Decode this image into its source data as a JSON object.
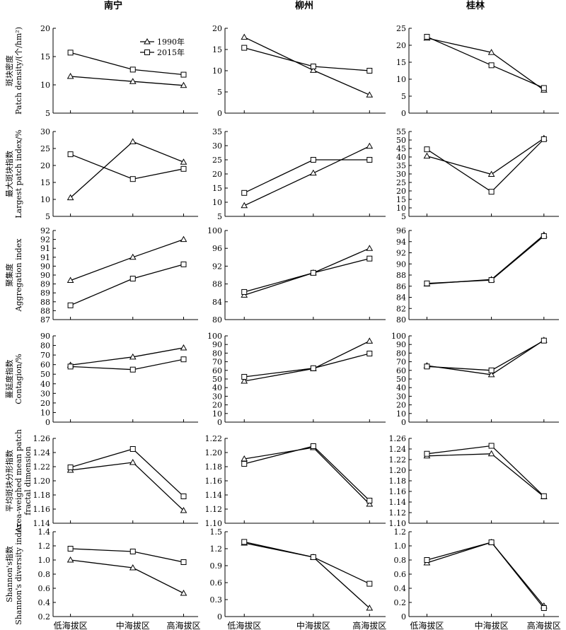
{
  "columns": [
    "南宁",
    "柳州",
    "桂林"
  ],
  "categories": [
    "低海拔区",
    "中海拔区",
    "高海拔区"
  ],
  "legend": [
    {
      "name": "1990年",
      "marker": "triangle"
    },
    {
      "name": "2015年",
      "marker": "square"
    }
  ],
  "row_labels": [
    {
      "zh": "斑块密度",
      "en": "Patch  density/(个/hm²)"
    },
    {
      "zh": "最大斑块指数",
      "en": "Largest patch index/%"
    },
    {
      "zh": "聚集度",
      "en": "Aggregation index"
    },
    {
      "zh": "蔓延度指数",
      "en": "Contagion/%"
    },
    {
      "zh": "平均斑块分形指数",
      "en": "Area-weighed mean patch",
      "en2": "fractal dimension"
    },
    {
      "zh": "Shannon's指数",
      "en": "Shannon's diversity index"
    }
  ],
  "chart_data": [
    {
      "type": "line",
      "row": 0,
      "col": 0,
      "ylim": [
        5,
        20
      ],
      "ticks": [
        5,
        10,
        15,
        20
      ],
      "tick_labels": [
        "5",
        "10",
        "15",
        "20"
      ],
      "categories": [
        "低海拔区",
        "中海拔区",
        "高海拔区"
      ],
      "series": [
        {
          "name": "1990年",
          "marker": "triangle",
          "values": [
            11.5,
            10.6,
            9.9
          ]
        },
        {
          "name": "2015年",
          "marker": "square",
          "values": [
            15.7,
            12.7,
            11.8
          ]
        }
      ]
    },
    {
      "type": "line",
      "row": 0,
      "col": 1,
      "ylim": [
        0,
        20
      ],
      "ticks": [
        0,
        5,
        10,
        15,
        20
      ],
      "tick_labels": [
        "0",
        "5",
        "10",
        "15",
        "20"
      ],
      "categories": [
        "低海拔区",
        "中海拔区",
        "高海拔区"
      ],
      "series": [
        {
          "name": "1990年",
          "marker": "triangle",
          "values": [
            17.9,
            10.1,
            4.3
          ]
        },
        {
          "name": "2015年",
          "marker": "square",
          "values": [
            15.4,
            11.0,
            10.0
          ]
        }
      ]
    },
    {
      "type": "line",
      "row": 0,
      "col": 2,
      "ylim": [
        0,
        25
      ],
      "ticks": [
        0,
        5,
        10,
        15,
        20,
        25
      ],
      "tick_labels": [
        "0",
        "5",
        "10",
        "15",
        "20",
        "25"
      ],
      "categories": [
        "低海拔区",
        "中海拔区",
        "高海拔区"
      ],
      "series": [
        {
          "name": "1990年",
          "marker": "triangle",
          "values": [
            22.1,
            17.9,
            6.8
          ]
        },
        {
          "name": "2015年",
          "marker": "square",
          "values": [
            22.5,
            14.1,
            7.4
          ]
        }
      ]
    },
    {
      "type": "line",
      "row": 1,
      "col": 0,
      "ylim": [
        5,
        30
      ],
      "ticks": [
        5,
        10,
        15,
        20,
        25,
        30
      ],
      "tick_labels": [
        "5",
        "10",
        "15",
        "20",
        "25",
        "30"
      ],
      "categories": [
        "低海拔区",
        "中海拔区",
        "高海拔区"
      ],
      "series": [
        {
          "name": "1990年",
          "marker": "triangle",
          "values": [
            10.5,
            27.0,
            21.0
          ]
        },
        {
          "name": "2015年",
          "marker": "square",
          "values": [
            23.3,
            16.0,
            19.0
          ]
        }
      ]
    },
    {
      "type": "line",
      "row": 1,
      "col": 1,
      "ylim": [
        5,
        35
      ],
      "ticks": [
        5,
        10,
        15,
        20,
        25,
        30,
        35
      ],
      "tick_labels": [
        "5",
        "10",
        "15",
        "20",
        "25",
        "30",
        "35"
      ],
      "categories": [
        "低海拔区",
        "中海拔区",
        "高海拔区"
      ],
      "series": [
        {
          "name": "1990年",
          "marker": "triangle",
          "values": [
            8.8,
            20.3,
            29.8
          ]
        },
        {
          "name": "2015年",
          "marker": "square",
          "values": [
            13.3,
            25.0,
            25.0
          ]
        }
      ]
    },
    {
      "type": "line",
      "row": 1,
      "col": 2,
      "ylim": [
        5,
        55
      ],
      "ticks": [
        5,
        10,
        15,
        20,
        25,
        30,
        35,
        40,
        45,
        50,
        55
      ],
      "tick_labels": [
        "5",
        "10",
        "15",
        "20",
        "25",
        "30",
        "35",
        "40",
        "45",
        "50",
        "55"
      ],
      "categories": [
        "低海拔区",
        "中海拔区",
        "高海拔区"
      ],
      "series": [
        {
          "name": "1990年",
          "marker": "triangle",
          "values": [
            40.5,
            29.8,
            51.0
          ]
        },
        {
          "name": "2015年",
          "marker": "square",
          "values": [
            44.5,
            19.5,
            50.5
          ]
        }
      ]
    },
    {
      "type": "line",
      "row": 2,
      "col": 0,
      "ylim": [
        87,
        92
      ],
      "ticks": [
        87,
        87.5,
        88,
        88.5,
        89,
        89.5,
        90,
        90.5,
        91,
        91.5,
        92
      ],
      "tick_labels": [
        "87",
        "88",
        "88",
        "89",
        "89",
        "90",
        "90",
        "91",
        "91",
        "92",
        "92"
      ],
      "categories": [
        "低海拔区",
        "中海拔区",
        "高海拔区"
      ],
      "series": [
        {
          "name": "1990年",
          "marker": "triangle",
          "values": [
            89.2,
            90.5,
            91.5
          ]
        },
        {
          "name": "2015年",
          "marker": "square",
          "values": [
            87.8,
            89.3,
            90.1
          ]
        }
      ]
    },
    {
      "type": "line",
      "row": 2,
      "col": 1,
      "ylim": [
        80,
        100
      ],
      "ticks": [
        80,
        84,
        88,
        92,
        96,
        100
      ],
      "tick_labels": [
        "80",
        "84",
        "88",
        "92",
        "96",
        "100"
      ],
      "categories": [
        "低海拔区",
        "中海拔区",
        "高海拔区"
      ],
      "series": [
        {
          "name": "1990年",
          "marker": "triangle",
          "values": [
            85.5,
            90.5,
            96.0
          ]
        },
        {
          "name": "2015年",
          "marker": "square",
          "values": [
            86.2,
            90.5,
            93.7
          ]
        }
      ]
    },
    {
      "type": "line",
      "row": 2,
      "col": 2,
      "ylim": [
        80,
        96
      ],
      "ticks": [
        80,
        82,
        84,
        86,
        88,
        90,
        92,
        94,
        96
      ],
      "tick_labels": [
        "80",
        "82",
        "84",
        "86",
        "88",
        "90",
        "92",
        "94",
        "96"
      ],
      "categories": [
        "低海拔区",
        "中海拔区",
        "高海拔区"
      ],
      "series": [
        {
          "name": "1990年",
          "marker": "triangle",
          "values": [
            86.4,
            87.2,
            95.2
          ]
        },
        {
          "name": "2015年",
          "marker": "square",
          "values": [
            86.5,
            87.1,
            95.0
          ]
        }
      ]
    },
    {
      "type": "line",
      "row": 3,
      "col": 0,
      "ylim": [
        0,
        90
      ],
      "ticks": [
        0,
        10,
        20,
        30,
        40,
        50,
        60,
        70,
        80,
        90
      ],
      "tick_labels": [
        "0",
        "10",
        "20",
        "30",
        "40",
        "50",
        "60",
        "70",
        "80",
        "90"
      ],
      "categories": [
        "低海拔区",
        "中海拔区",
        "高海拔区"
      ],
      "series": [
        {
          "name": "1990年",
          "marker": "triangle",
          "values": [
            59.5,
            68.0,
            77.5
          ]
        },
        {
          "name": "2015年",
          "marker": "square",
          "values": [
            58.0,
            54.8,
            65.5
          ]
        }
      ]
    },
    {
      "type": "line",
      "row": 3,
      "col": 1,
      "ylim": [
        0,
        100
      ],
      "ticks": [
        0,
        10,
        20,
        30,
        40,
        50,
        60,
        70,
        80,
        90,
        100
      ],
      "tick_labels": [
        "0",
        "10",
        "20",
        "30",
        "40",
        "50",
        "60",
        "70",
        "80",
        "90",
        "100"
      ],
      "categories": [
        "低海拔区",
        "中海拔区",
        "高海拔区"
      ],
      "series": [
        {
          "name": "1990年",
          "marker": "triangle",
          "values": [
            47.5,
            62.0,
            94.0
          ]
        },
        {
          "name": "2015年",
          "marker": "square",
          "values": [
            52.5,
            62.5,
            79.5
          ]
        }
      ]
    },
    {
      "type": "line",
      "row": 3,
      "col": 2,
      "ylim": [
        0,
        100
      ],
      "ticks": [
        0,
        10,
        20,
        30,
        40,
        50,
        60,
        70,
        80,
        90,
        100
      ],
      "tick_labels": [
        "0",
        "10",
        "20",
        "30",
        "40",
        "50",
        "60",
        "70",
        "80",
        "90",
        "100"
      ],
      "categories": [
        "低海拔区",
        "中海拔区",
        "高海拔区"
      ],
      "series": [
        {
          "name": "1990年",
          "marker": "triangle",
          "values": [
            65.5,
            55.0,
            95.0
          ]
        },
        {
          "name": "2015年",
          "marker": "square",
          "values": [
            64.5,
            60.0,
            94.5
          ]
        }
      ]
    },
    {
      "type": "line",
      "row": 4,
      "col": 0,
      "ylim": [
        1.14,
        1.26
      ],
      "ticks": [
        1.14,
        1.16,
        1.18,
        1.2,
        1.22,
        1.24,
        1.26
      ],
      "tick_labels": [
        "1.14",
        "1.16",
        "1.18",
        "1.20",
        "1.22",
        "1.24",
        "1.26"
      ],
      "categories": [
        "低海拔区",
        "中海拔区",
        "高海拔区"
      ],
      "series": [
        {
          "name": "1990年",
          "marker": "triangle",
          "values": [
            1.215,
            1.226,
            1.158
          ]
        },
        {
          "name": "2015年",
          "marker": "square",
          "values": [
            1.219,
            1.245,
            1.178
          ]
        }
      ]
    },
    {
      "type": "line",
      "row": 4,
      "col": 1,
      "ylim": [
        1.1,
        1.22
      ],
      "ticks": [
        1.1,
        1.12,
        1.14,
        1.16,
        1.18,
        1.2,
        1.22
      ],
      "tick_labels": [
        "1.10",
        "1.12",
        "1.14",
        "1.16",
        "1.18",
        "1.20",
        "1.22"
      ],
      "categories": [
        "低海拔区",
        "中海拔区",
        "高海拔区"
      ],
      "series": [
        {
          "name": "1990年",
          "marker": "triangle",
          "values": [
            1.191,
            1.207,
            1.127
          ]
        },
        {
          "name": "2015年",
          "marker": "square",
          "values": [
            1.184,
            1.209,
            1.132
          ]
        }
      ]
    },
    {
      "type": "line",
      "row": 4,
      "col": 2,
      "ylim": [
        1.1,
        1.26
      ],
      "ticks": [
        1.1,
        1.12,
        1.14,
        1.16,
        1.18,
        1.2,
        1.22,
        1.24,
        1.26
      ],
      "tick_labels": [
        "1.10",
        "1.12",
        "1.14",
        "1.16",
        "1.18",
        "1.20",
        "1.22",
        "1.24",
        "1.26"
      ],
      "categories": [
        "低海拔区",
        "中海拔区",
        "高海拔区"
      ],
      "series": [
        {
          "name": "1990年",
          "marker": "triangle",
          "values": [
            1.227,
            1.231,
            1.15
          ]
        },
        {
          "name": "2015年",
          "marker": "square",
          "values": [
            1.231,
            1.246,
            1.151
          ]
        }
      ]
    },
    {
      "type": "line",
      "row": 5,
      "col": 0,
      "ylim": [
        0.2,
        1.4
      ],
      "ticks": [
        0.2,
        0.4,
        0.6,
        0.8,
        1.0,
        1.2,
        1.4
      ],
      "tick_labels": [
        "0.2",
        "0.4",
        "0.6",
        "0.8",
        "1.0",
        "1.2",
        "1.4"
      ],
      "categories": [
        "低海拔区",
        "中海拔区",
        "高海拔区"
      ],
      "series": [
        {
          "name": "1990年",
          "marker": "triangle",
          "values": [
            1.0,
            0.89,
            0.53
          ]
        },
        {
          "name": "2015年",
          "marker": "square",
          "values": [
            1.16,
            1.12,
            0.97
          ]
        }
      ]
    },
    {
      "type": "line",
      "row": 5,
      "col": 1,
      "ylim": [
        0,
        1.5
      ],
      "ticks": [
        0,
        0.3,
        0.6,
        0.9,
        1.2,
        1.5
      ],
      "tick_labels": [
        "0",
        "0.3",
        "0.6",
        "0.9",
        "1.2",
        "1.5"
      ],
      "categories": [
        "低海拔区",
        "中海拔区",
        "高海拔区"
      ],
      "series": [
        {
          "name": "1990年",
          "marker": "triangle",
          "values": [
            1.3,
            1.05,
            0.15
          ]
        },
        {
          "name": "2015年",
          "marker": "square",
          "values": [
            1.32,
            1.05,
            0.58
          ]
        }
      ]
    },
    {
      "type": "line",
      "row": 5,
      "col": 2,
      "ylim": [
        0,
        1.2
      ],
      "ticks": [
        0,
        0.2,
        0.4,
        0.6,
        0.8,
        1.0,
        1.2
      ],
      "tick_labels": [
        "0",
        "0.2",
        "0.4",
        "0.6",
        "0.8",
        "1.0",
        "1.2"
      ],
      "categories": [
        "低海拔区",
        "中海拔区",
        "高海拔区"
      ],
      "series": [
        {
          "name": "1990年",
          "marker": "triangle",
          "values": [
            0.76,
            1.05,
            0.15
          ]
        },
        {
          "name": "2015年",
          "marker": "square",
          "values": [
            0.8,
            1.05,
            0.12
          ]
        }
      ]
    }
  ]
}
